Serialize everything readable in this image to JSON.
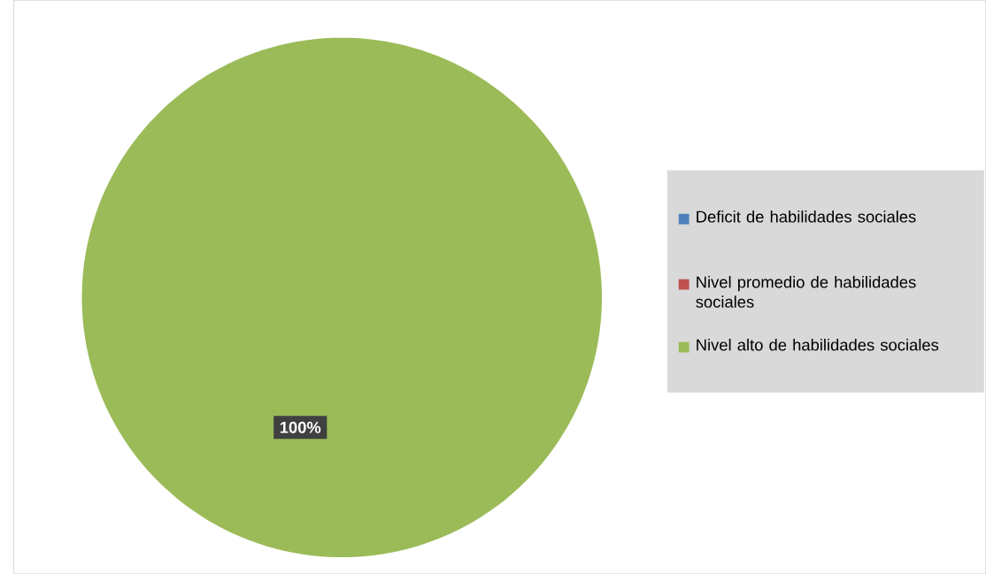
{
  "chart_data": {
    "type": "pie",
    "categories": [
      "Deficit de habilidades sociales",
      "Nivel promedio de habilidades sociales",
      "Nivel alto de habilidades sociales"
    ],
    "values": [
      0,
      0,
      100
    ],
    "colors": [
      "#4f81bd",
      "#c0504d",
      "#9bbb59"
    ],
    "value_labels": [
      null,
      null,
      "100%"
    ],
    "legend": "right"
  }
}
